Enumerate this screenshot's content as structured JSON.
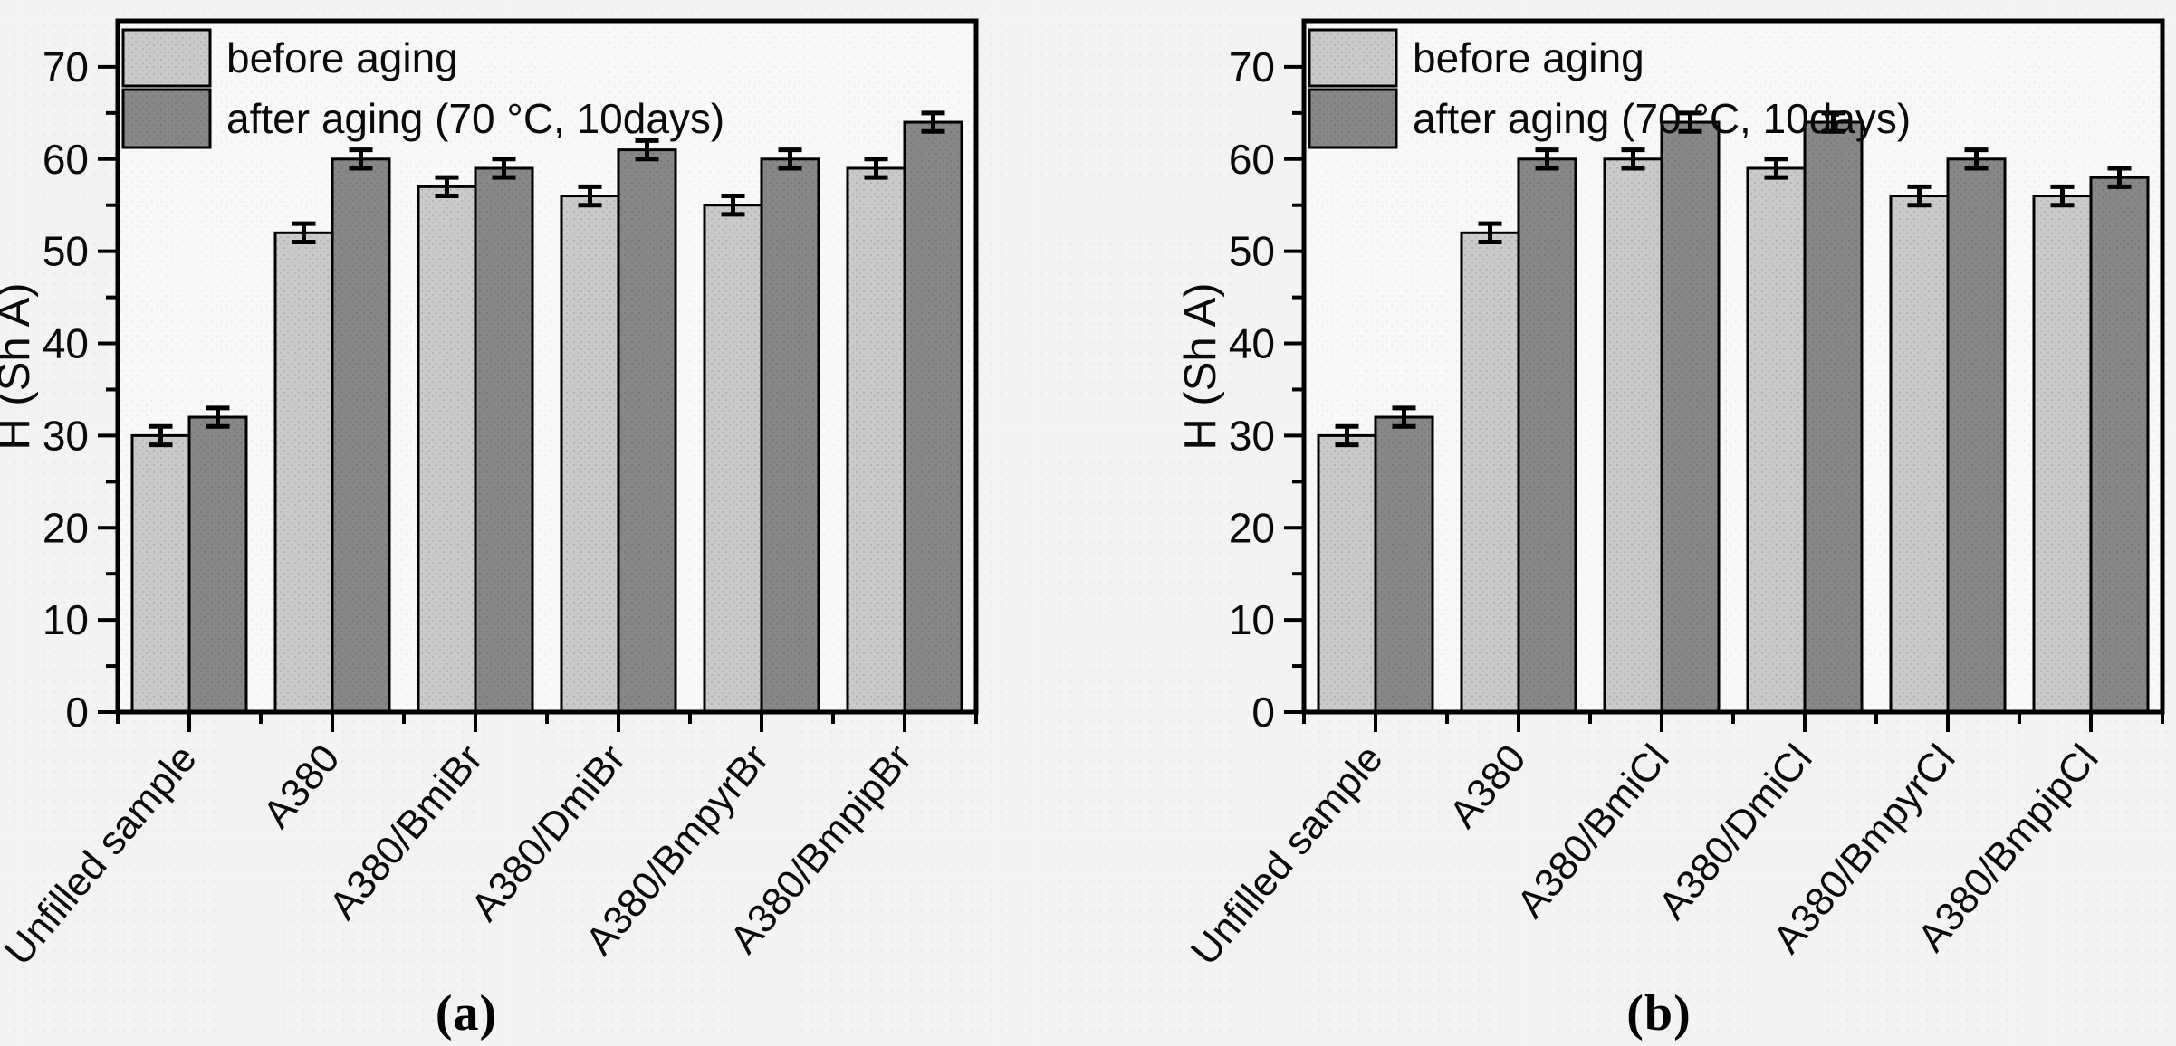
{
  "figure": {
    "background": "#f3f3f1",
    "plot_background": "#f8f8f6",
    "frame_color": "#000000"
  },
  "legend": {
    "items": [
      {
        "label": "before aging",
        "color": "#cacaca"
      },
      {
        "label": "after aging (70 °C, 10days)",
        "color": "#878787"
      }
    ]
  },
  "chart_data": [
    {
      "id": "a",
      "type": "bar",
      "caption": "(a)",
      "title": "",
      "xlabel": "",
      "ylabel": "H (Sh A)",
      "ylim": [
        0,
        75
      ],
      "yticks": [
        0,
        10,
        20,
        30,
        40,
        50,
        60,
        70
      ],
      "ytick_minor_step": 5,
      "grid": false,
      "legend_position": "top-left",
      "categories": [
        "Unfilled sample",
        "A380",
        "A380/BmiBr",
        "A380/DmiBr",
        "A380/BmpyrBr",
        "A380/BmpipBr"
      ],
      "series": [
        {
          "name": "before aging",
          "color": "#cacaca",
          "values": [
            30,
            52,
            57,
            56,
            55,
            59
          ],
          "errors": [
            1,
            1,
            1,
            1,
            1,
            1
          ]
        },
        {
          "name": "after aging (70 °C, 10days)",
          "color": "#878787",
          "values": [
            32,
            60,
            59,
            61,
            60,
            64
          ],
          "errors": [
            1,
            1,
            1,
            1,
            1,
            1
          ]
        }
      ]
    },
    {
      "id": "b",
      "type": "bar",
      "caption": "(b)",
      "title": "",
      "xlabel": "",
      "ylabel": "H (Sh A)",
      "ylim": [
        0,
        75
      ],
      "yticks": [
        0,
        10,
        20,
        30,
        40,
        50,
        60,
        70
      ],
      "ytick_minor_step": 5,
      "grid": false,
      "legend_position": "top-left",
      "categories": [
        "Unfilled sample",
        "A380",
        "A380/BmiCl",
        "A380/DmiCl",
        "A380/BmpyrCl",
        "A380/BmpipCl"
      ],
      "series": [
        {
          "name": "before aging",
          "color": "#cacaca",
          "values": [
            30,
            52,
            60,
            59,
            56,
            56
          ],
          "errors": [
            1,
            1,
            1,
            1,
            1,
            1
          ]
        },
        {
          "name": "after aging (70 °C, 10days)",
          "color": "#878787",
          "values": [
            32,
            60,
            64,
            64,
            60,
            58
          ],
          "errors": [
            1,
            1,
            1,
            1,
            1,
            1
          ]
        }
      ]
    }
  ]
}
